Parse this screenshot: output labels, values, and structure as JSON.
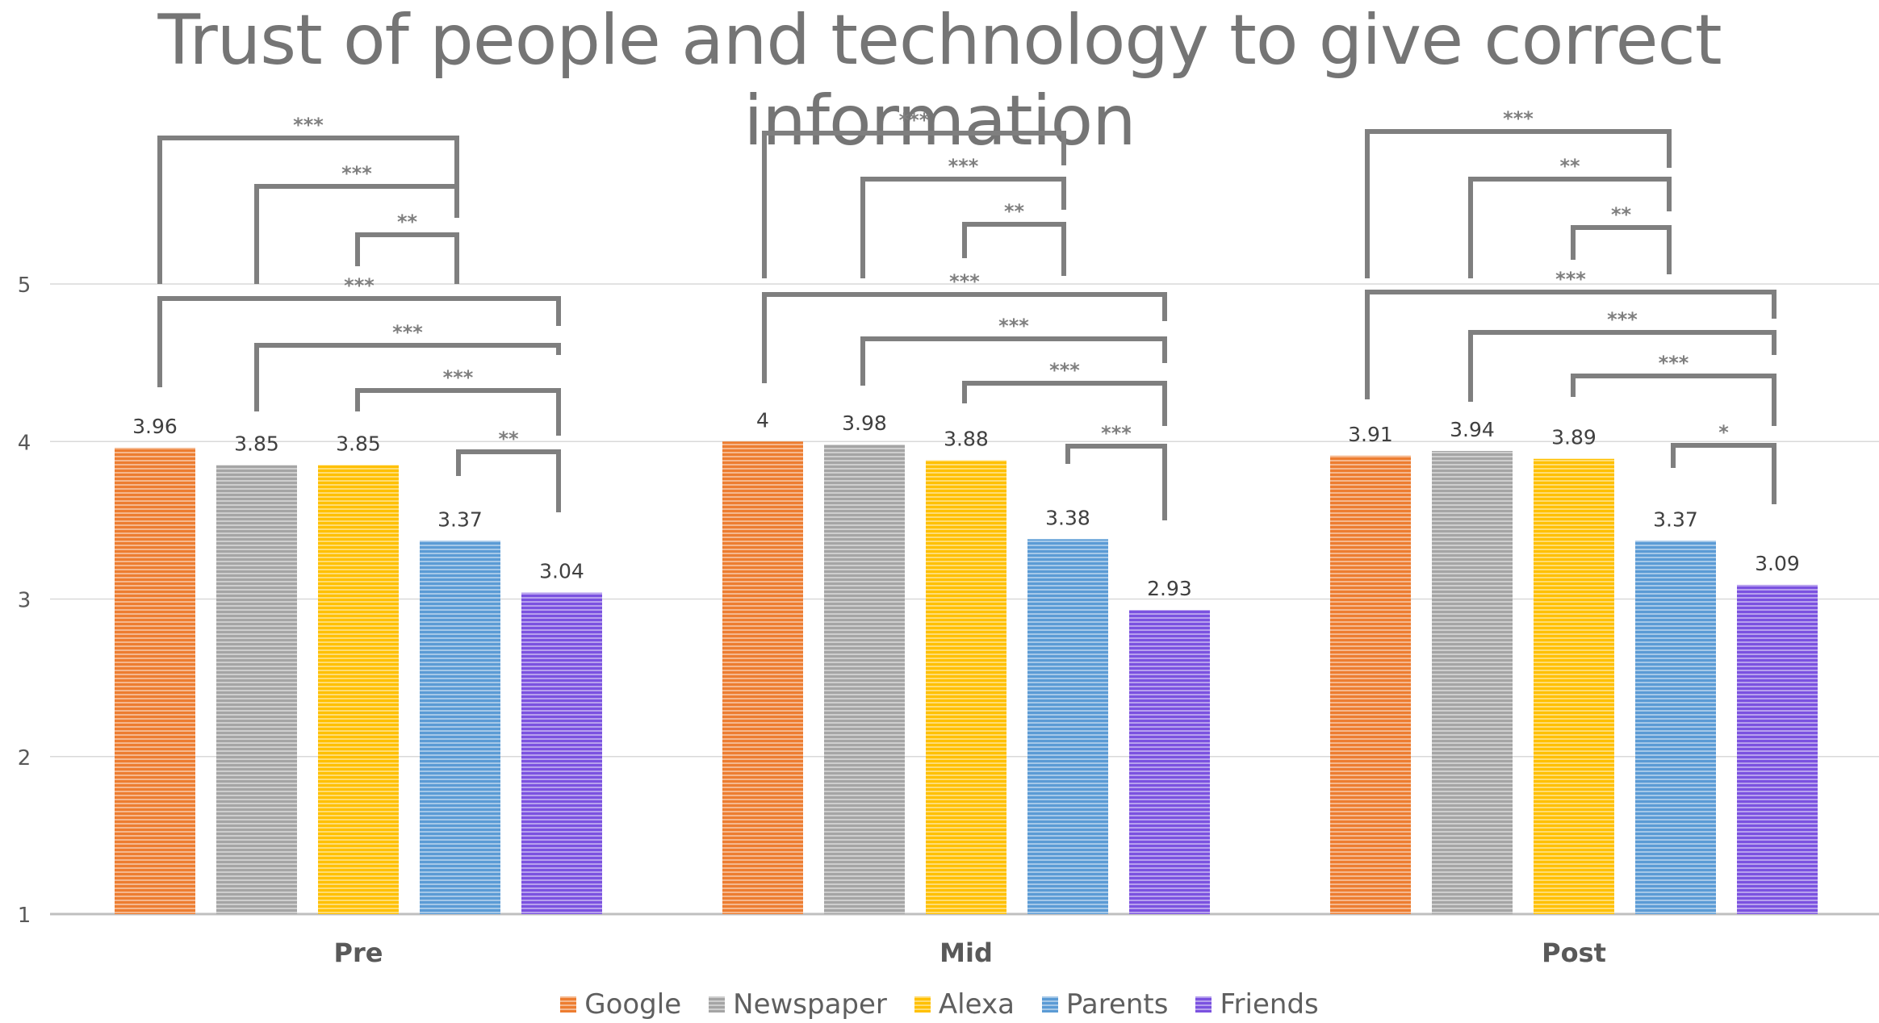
{
  "chart_data": {
    "type": "bar",
    "title": "Trust of people and technology to give correct information",
    "xlabel": "",
    "ylabel": "",
    "ylim": [
      1,
      5
    ],
    "yticks": [
      "1",
      "2",
      "3",
      "4",
      "5"
    ],
    "grid": true,
    "legend_position": "bottom",
    "categories": [
      "Pre",
      "Mid",
      "Post"
    ],
    "series": [
      {
        "name": "Google",
        "color": "#ed7d31",
        "values": [
          3.96,
          4,
          3.91
        ],
        "labels": [
          "3.96",
          "4",
          "3.91"
        ]
      },
      {
        "name": "Newspaper",
        "color": "#a5a5a5",
        "values": [
          3.85,
          3.98,
          3.94
        ],
        "labels": [
          "3.85",
          "3.98",
          "3.94"
        ]
      },
      {
        "name": "Alexa",
        "color": "#ffc000",
        "values": [
          3.85,
          3.88,
          3.89
        ],
        "labels": [
          "3.85",
          "3.88",
          "3.89"
        ]
      },
      {
        "name": "Parents",
        "color": "#5b9bd5",
        "values": [
          3.37,
          3.38,
          3.37
        ],
        "labels": [
          "3.37",
          "3.38",
          "3.37"
        ]
      },
      {
        "name": "Friends",
        "color": "#7b52e0",
        "values": [
          3.04,
          2.93,
          3.09
        ],
        "labels": [
          "3.04",
          "2.93",
          "3.09"
        ]
      }
    ],
    "significance": [
      [
        {
          "from": "Google",
          "to": "Alexa",
          "label": "***"
        },
        {
          "from": "Newspaper",
          "to": "Alexa",
          "label": "***"
        },
        {
          "from": "Alexa",
          "to": "Alexa",
          "label": "**"
        },
        {
          "from": "Google",
          "to": "Friends",
          "label": "***"
        },
        {
          "from": "Newspaper",
          "to": "Friends",
          "label": "***"
        },
        {
          "from": "Alexa",
          "to": "Friends",
          "label": "***"
        },
        {
          "from": "Parents",
          "to": "Friends",
          "label": "**"
        }
      ],
      [
        {
          "from": "Google",
          "to": "Alexa",
          "label": "***"
        },
        {
          "from": "Newspaper",
          "to": "Alexa",
          "label": "***"
        },
        {
          "from": "Alexa",
          "to": "Alexa",
          "label": "**"
        },
        {
          "from": "Google",
          "to": "Friends",
          "label": "***"
        },
        {
          "from": "Newspaper",
          "to": "Friends",
          "label": "***"
        },
        {
          "from": "Alexa",
          "to": "Friends",
          "label": "***"
        },
        {
          "from": "Parents",
          "to": "Friends",
          "label": "***"
        }
      ],
      [
        {
          "from": "Google",
          "to": "Alexa",
          "label": "***"
        },
        {
          "from": "Newspaper",
          "to": "Alexa",
          "label": "**"
        },
        {
          "from": "Alexa",
          "to": "Alexa",
          "label": "**"
        },
        {
          "from": "Google",
          "to": "Friends",
          "label": "***"
        },
        {
          "from": "Newspaper",
          "to": "Friends",
          "label": "***"
        },
        {
          "from": "Alexa",
          "to": "Friends",
          "label": "***"
        },
        {
          "from": "Parents",
          "to": "Friends",
          "label": "*"
        }
      ]
    ]
  }
}
